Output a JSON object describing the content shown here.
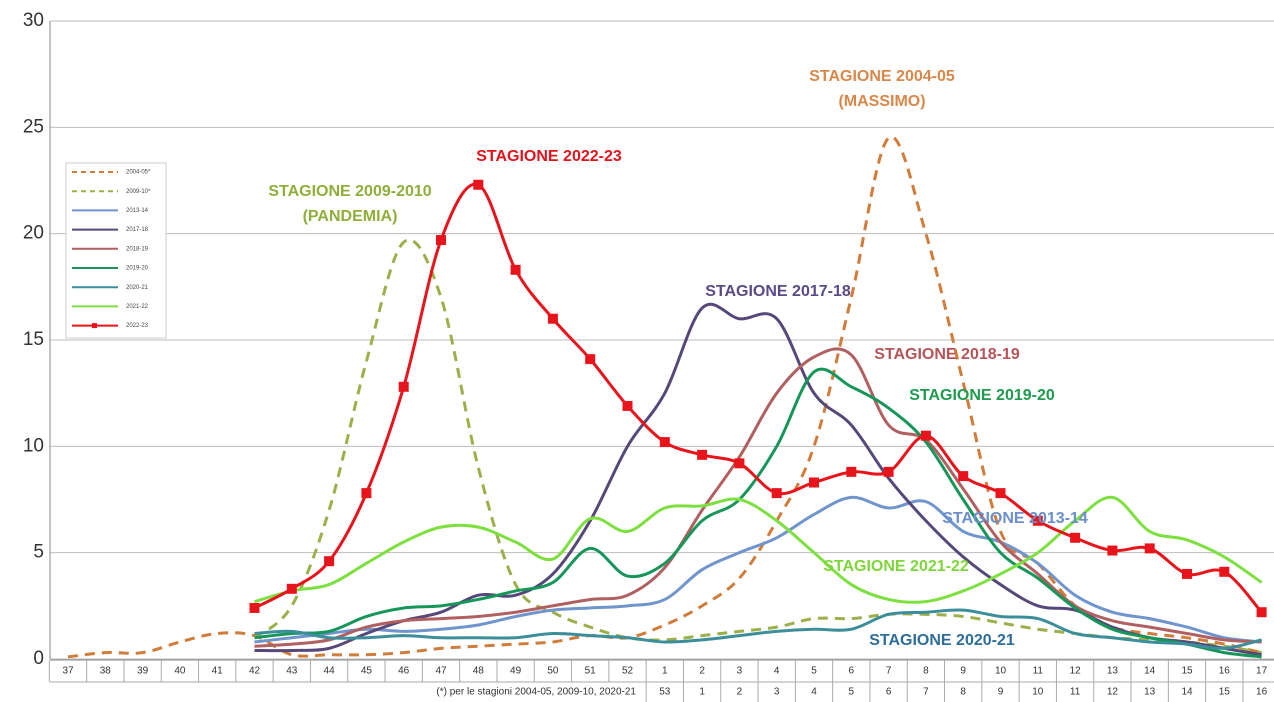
{
  "chart_data": {
    "type": "line",
    "categories": [
      "37",
      "38",
      "39",
      "40",
      "41",
      "42",
      "43",
      "44",
      "45",
      "46",
      "47",
      "48",
      "49",
      "50",
      "51",
      "52",
      "1",
      "2",
      "3",
      "4",
      "5",
      "6",
      "7",
      "8",
      "9",
      "10",
      "11",
      "12",
      "13",
      "14",
      "15",
      "16",
      "17"
    ],
    "categories2": [
      null,
      null,
      null,
      null,
      null,
      null,
      null,
      null,
      null,
      null,
      null,
      null,
      null,
      null,
      null,
      null,
      "53",
      "1",
      "2",
      "3",
      "4",
      "5",
      "6",
      "7",
      "8",
      "9",
      "10",
      "11",
      "12",
      "13",
      "14",
      "15",
      "16"
    ],
    "categories2_note": "(*) per le stagioni 2004-05, 2009-10, 2020-21",
    "ylim": [
      0,
      30
    ],
    "yticks": [
      0,
      5,
      10,
      15,
      20,
      25,
      30
    ],
    "grid": true,
    "series": [
      {
        "name": "2004-05*",
        "color": "#d07c3a",
        "dashed": true,
        "values": [
          0.1,
          0.3,
          0.3,
          0.8,
          1.2,
          1.1,
          0.2,
          0.2,
          0.2,
          0.3,
          0.5,
          0.6,
          0.7,
          0.8,
          1.1,
          1.0,
          1.6,
          2.5,
          3.8,
          6.5,
          10,
          17,
          24.5,
          20,
          13,
          6,
          4.5,
          2.5,
          1.5,
          1.2,
          1.0,
          0.7,
          0.3
        ]
      },
      {
        "name": "2009-10*",
        "color": "#9bb04a",
        "dashed": true,
        "values": [
          null,
          null,
          null,
          null,
          null,
          1.0,
          2.5,
          7,
          14,
          19.6,
          17,
          9,
          3.5,
          2.2,
          1.5,
          1.0,
          0.9,
          1.1,
          1.3,
          1.5,
          1.9,
          1.9,
          2.1,
          2.1,
          2.0,
          1.7,
          1.4,
          1.2,
          1.0,
          0.9,
          0.8,
          0.6,
          0.3
        ]
      },
      {
        "name": "2013-14",
        "color": "#6f95cc",
        "values": [
          null,
          null,
          null,
          null,
          null,
          0.8,
          1.0,
          1.2,
          1.4,
          1.3,
          1.4,
          1.6,
          2.0,
          2.3,
          2.4,
          2.5,
          2.8,
          4.2,
          5.0,
          5.7,
          6.8,
          7.6,
          7.1,
          7.4,
          6.0,
          5.5,
          4.5,
          3.0,
          2.2,
          1.9,
          1.5,
          1.0,
          0.8
        ]
      },
      {
        "name": "2017-18",
        "color": "#564879",
        "values": [
          null,
          null,
          null,
          null,
          null,
          0.4,
          0.4,
          0.5,
          1.2,
          1.8,
          2.2,
          3.0,
          3.0,
          4.0,
          6.5,
          10,
          12.5,
          16.5,
          16.0,
          16.0,
          12.5,
          11.0,
          8.5,
          6.5,
          4.8,
          3.5,
          2.5,
          2.3,
          1.5,
          1.0,
          0.8,
          0.5,
          0.2
        ]
      },
      {
        "name": "2018-19",
        "color": "#b06060",
        "values": [
          null,
          null,
          null,
          null,
          null,
          0.6,
          0.7,
          0.9,
          1.5,
          1.8,
          1.9,
          2.0,
          2.2,
          2.5,
          2.8,
          3.0,
          4.3,
          7.0,
          9.5,
          12.5,
          14.2,
          14.3,
          11.0,
          10.3,
          8.0,
          5.5,
          4.0,
          2.5,
          1.8,
          1.5,
          1.2,
          0.9,
          0.8
        ]
      },
      {
        "name": "2019-20",
        "color": "#17965a",
        "values": [
          null,
          null,
          null,
          null,
          null,
          1.0,
          1.2,
          1.3,
          2.0,
          2.4,
          2.5,
          2.8,
          3.2,
          3.6,
          5.2,
          3.9,
          4.5,
          6.5,
          7.5,
          10,
          13.5,
          12.8,
          11.8,
          10.2,
          7.5,
          5.0,
          3.8,
          2.4,
          1.4,
          1.0,
          0.7,
          0.3,
          0.1
        ]
      },
      {
        "name": "2020-21",
        "color": "#3c8f9a",
        "values": [
          null,
          null,
          null,
          null,
          null,
          1.2,
          1.3,
          1.0,
          1.0,
          1.1,
          1.0,
          1.0,
          1.0,
          1.2,
          1.1,
          1.0,
          0.8,
          0.9,
          1.1,
          1.3,
          1.4,
          1.4,
          2.1,
          2.2,
          2.3,
          2.0,
          1.9,
          1.2,
          1.0,
          0.8,
          0.7,
          0.5,
          0.9
        ]
      },
      {
        "name": "2021-22",
        "color": "#7ee040",
        "values": [
          null,
          null,
          null,
          null,
          null,
          2.7,
          3.2,
          3.5,
          4.5,
          5.5,
          6.2,
          6.2,
          5.5,
          4.7,
          6.6,
          6.0,
          7.1,
          7.2,
          7.5,
          6.5,
          5.0,
          3.5,
          2.8,
          2.7,
          3.2,
          4.0,
          5.0,
          6.5,
          7.6,
          6.0,
          5.6,
          4.8,
          3.6
        ]
      },
      {
        "name": "2022-23",
        "color": "#e8141c",
        "markers": true,
        "values": [
          null,
          null,
          null,
          null,
          null,
          2.4,
          3.3,
          4.6,
          7.8,
          12.8,
          19.7,
          22.3,
          18.3,
          16.0,
          14.1,
          11.9,
          10.2,
          9.6,
          9.2,
          7.8,
          8.3,
          8.8,
          8.8,
          10.5,
          8.6,
          7.8,
          6.5,
          5.7,
          5.1,
          5.2,
          4.0,
          4.1,
          2.2
        ]
      }
    ],
    "annotations": [
      {
        "lines": [
          "STAGIONE 2004-05",
          "(MASSIMO)"
        ],
        "color": "#d9884a"
      },
      {
        "lines": [
          "STAGIONE 2009-2010",
          "(PANDEMIA)"
        ],
        "color": "#8fae3a"
      },
      {
        "lines": [
          "STAGIONE 2022-23"
        ],
        "color": "#e0141c"
      },
      {
        "lines": [
          "STAGIONE 2017-18"
        ],
        "color": "#5a4a85"
      },
      {
        "lines": [
          "STAGIONE 2018-19"
        ],
        "color": "#b5555a"
      },
      {
        "lines": [
          "STAGIONE 2019-20"
        ],
        "color": "#1f9a4f"
      },
      {
        "lines": [
          "STAGIONE 2013-14"
        ],
        "color": "#6b8fc8"
      },
      {
        "lines": [
          "STAGIONE 2021-22"
        ],
        "color": "#7fd63b"
      },
      {
        "lines": [
          "STAGIONE 2020-21"
        ],
        "color": "#2e6e99"
      }
    ]
  }
}
